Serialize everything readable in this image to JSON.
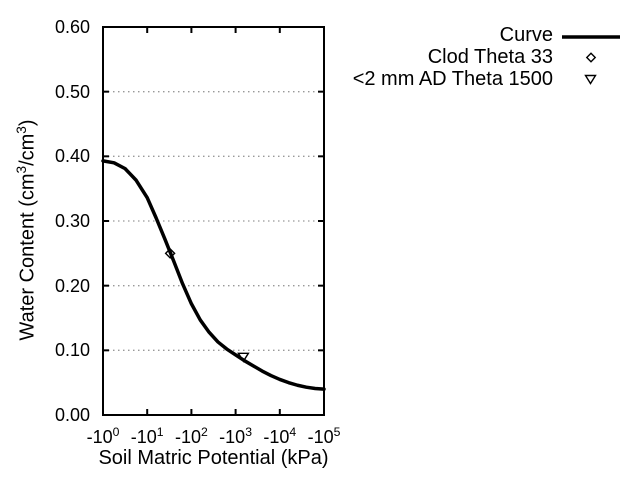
{
  "figure": {
    "background_color": "#ffffff",
    "text_color": "#000000",
    "grid_color": "#999999",
    "line_color": "#000000"
  },
  "chart_data": {
    "type": "line",
    "title": "",
    "xlabel": "Soil Matric Potential (kPa)",
    "ylabel": "Water Content (cm3/cm3)",
    "ylabel_parts": {
      "pre": "Water Content (cm",
      "sup1": "3",
      "mid": "/cm",
      "sup2": "3",
      "post": ")"
    },
    "x_scale": "negative logarithmic, -10^0 to -10^5 kPa",
    "xlim_log10": [
      0,
      5
    ],
    "ylim": [
      0,
      0.6
    ],
    "grid": "horizontal dotted gridlines at interior y ticks",
    "legend_position": "outside top-right",
    "x_ticks": [
      {
        "base": "-10",
        "exp": "0",
        "log10": 0
      },
      {
        "base": "-10",
        "exp": "1",
        "log10": 1
      },
      {
        "base": "-10",
        "exp": "2",
        "log10": 2
      },
      {
        "base": "-10",
        "exp": "3",
        "log10": 3
      },
      {
        "base": "-10",
        "exp": "4",
        "log10": 4
      },
      {
        "base": "-10",
        "exp": "5",
        "log10": 5
      }
    ],
    "y_ticks": [
      {
        "label": "0.00",
        "value": 0.0
      },
      {
        "label": "0.10",
        "value": 0.1
      },
      {
        "label": "0.20",
        "value": 0.2
      },
      {
        "label": "0.30",
        "value": 0.3
      },
      {
        "label": "0.40",
        "value": 0.4
      },
      {
        "label": "0.50",
        "value": 0.5
      },
      {
        "label": "0.60",
        "value": 0.6
      }
    ],
    "series": [
      {
        "name": "Curve",
        "type": "line",
        "marker": "none",
        "points_log10kPa_theta": [
          [
            0.0,
            0.393
          ],
          [
            0.25,
            0.39
          ],
          [
            0.5,
            0.381
          ],
          [
            0.75,
            0.363
          ],
          [
            1.0,
            0.336
          ],
          [
            1.2,
            0.305
          ],
          [
            1.4,
            0.272
          ],
          [
            1.6,
            0.238
          ],
          [
            1.8,
            0.203
          ],
          [
            2.0,
            0.172
          ],
          [
            2.2,
            0.147
          ],
          [
            2.4,
            0.128
          ],
          [
            2.6,
            0.113
          ],
          [
            2.8,
            0.102
          ],
          [
            3.0,
            0.093
          ],
          [
            3.2,
            0.084
          ],
          [
            3.4,
            0.076
          ],
          [
            3.6,
            0.068
          ],
          [
            3.8,
            0.061
          ],
          [
            4.0,
            0.055
          ],
          [
            4.2,
            0.05
          ],
          [
            4.4,
            0.046
          ],
          [
            4.6,
            0.043
          ],
          [
            4.8,
            0.041
          ],
          [
            5.0,
            0.04
          ]
        ]
      },
      {
        "name": "Clod Theta 33",
        "type": "scatter",
        "marker": "open-diamond",
        "points_kPa_theta": [
          [
            -33,
            0.25
          ]
        ]
      },
      {
        "name": "<2 mm AD Theta 1500",
        "type": "scatter",
        "marker": "open-triangle-down",
        "points_kPa_theta": [
          [
            -1500,
            0.09
          ]
        ]
      }
    ]
  }
}
